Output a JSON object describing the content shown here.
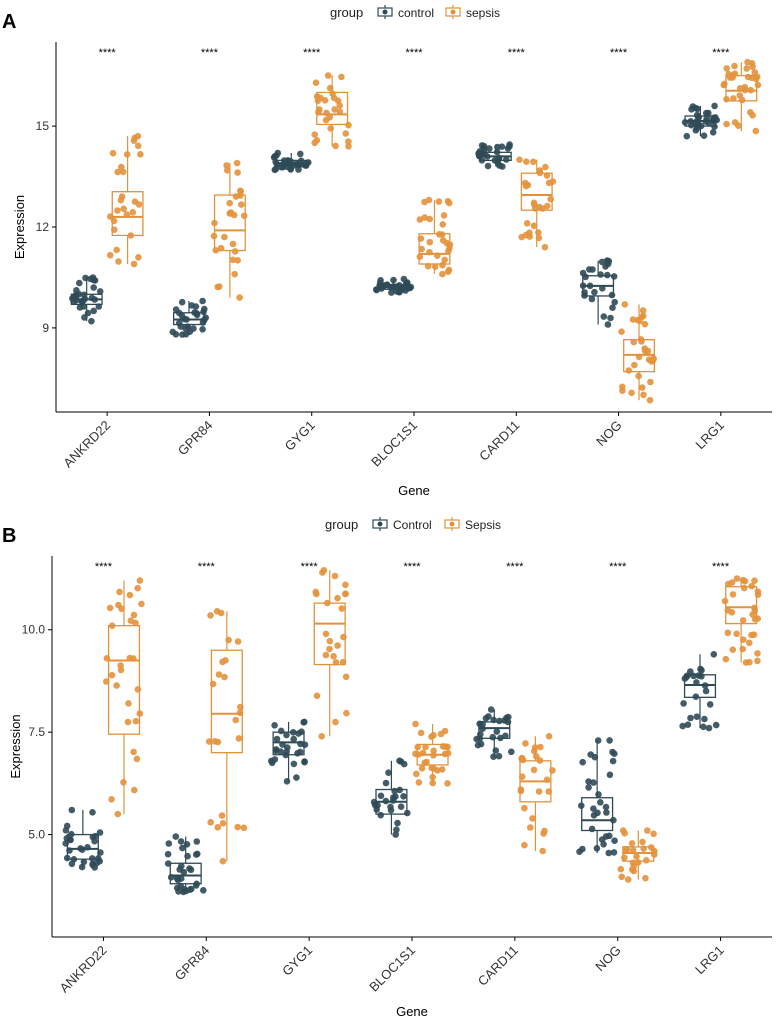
{
  "chart_data": [
    {
      "panel_label": "A",
      "type": "boxplot",
      "legend": {
        "title": "group",
        "entries": [
          "control",
          "sepsis"
        ],
        "placement": "top"
      },
      "colors": {
        "control": "#2f4a57",
        "sepsis": "#e3923c"
      },
      "xlabel": "Gene",
      "ylabel": "Expression",
      "ylim": [
        6.5,
        17.5
      ],
      "yticks": [
        9,
        12,
        15
      ],
      "ytick_labels": [
        "9",
        "12",
        "15"
      ],
      "categories": [
        "ANKRD22",
        "GPR84",
        "GYG1",
        "BLOC1S1",
        "CARD11",
        "NOG",
        "LRG1"
      ],
      "significance": [
        "****",
        "****",
        "****",
        "****",
        "****",
        "****",
        "****"
      ],
      "series": [
        {
          "name": "control",
          "boxes": [
            {
              "min": 9.2,
              "q1": 9.7,
              "median": 9.85,
              "q3": 10.0,
              "max": 10.5
            },
            {
              "min": 8.8,
              "q1": 9.1,
              "median": 9.25,
              "q3": 9.45,
              "max": 9.8
            },
            {
              "min": 13.7,
              "q1": 13.82,
              "median": 13.9,
              "q3": 13.98,
              "max": 14.2
            },
            {
              "min": 10.05,
              "q1": 10.15,
              "median": 10.22,
              "q3": 10.28,
              "max": 10.45
            },
            {
              "min": 13.8,
              "q1": 13.98,
              "median": 14.1,
              "q3": 14.22,
              "max": 14.45
            },
            {
              "min": 9.1,
              "q1": 9.95,
              "median": 10.25,
              "q3": 10.55,
              "max": 11.0
            },
            {
              "min": 14.7,
              "q1": 15.0,
              "median": 15.15,
              "q3": 15.3,
              "max": 15.6
            }
          ]
        },
        {
          "name": "sepsis",
          "boxes": [
            {
              "min": 10.9,
              "q1": 11.75,
              "median": 12.3,
              "q3": 13.05,
              "max": 14.7
            },
            {
              "min": 9.9,
              "q1": 11.3,
              "median": 11.9,
              "q3": 12.95,
              "max": 13.9
            },
            {
              "min": 14.4,
              "q1": 15.05,
              "median": 15.35,
              "q3": 16.0,
              "max": 16.5
            },
            {
              "min": 10.6,
              "q1": 10.9,
              "median": 11.2,
              "q3": 11.8,
              "max": 12.8
            },
            {
              "min": 11.4,
              "q1": 12.5,
              "median": 12.95,
              "q3": 13.6,
              "max": 14.0
            },
            {
              "min": 6.85,
              "q1": 7.7,
              "median": 8.2,
              "q3": 8.65,
              "max": 9.7
            },
            {
              "min": 14.85,
              "q1": 15.75,
              "median": 16.05,
              "q3": 16.5,
              "max": 16.9
            }
          ]
        }
      ]
    },
    {
      "panel_label": "B",
      "type": "boxplot",
      "legend": {
        "title": "group",
        "entries": [
          "Control",
          "Sepsis"
        ],
        "placement": "top"
      },
      "colors": {
        "control": "#2f4a57",
        "sepsis": "#e3923c"
      },
      "xlabel": "Gene",
      "ylabel": "Expression",
      "ylim": [
        2.5,
        11.8
      ],
      "yticks": [
        5.0,
        7.5,
        10.0
      ],
      "ytick_labels": [
        "5.0",
        "7.5",
        "10.0"
      ],
      "categories": [
        "ANKRD22",
        "GPR84",
        "GYG1",
        "BLOC1S1",
        "CARD11",
        "NOG",
        "LRG1"
      ],
      "significance": [
        "****",
        "****",
        "****",
        "****",
        "****",
        "****",
        "****"
      ],
      "series": [
        {
          "name": "Control",
          "boxes": [
            {
              "min": 4.2,
              "q1": 4.4,
              "median": 4.65,
              "q3": 5.0,
              "max": 5.6
            },
            {
              "min": 3.6,
              "q1": 3.8,
              "median": 4.0,
              "q3": 4.3,
              "max": 4.95
            },
            {
              "min": 6.3,
              "q1": 6.95,
              "median": 7.25,
              "q3": 7.5,
              "max": 7.75
            },
            {
              "min": 5.0,
              "q1": 5.5,
              "median": 5.8,
              "q3": 6.1,
              "max": 6.8
            },
            {
              "min": 6.9,
              "q1": 7.35,
              "median": 7.6,
              "q3": 7.75,
              "max": 8.05
            },
            {
              "min": 4.55,
              "q1": 5.1,
              "median": 5.35,
              "q3": 5.9,
              "max": 7.3
            },
            {
              "min": 7.6,
              "q1": 8.35,
              "median": 8.65,
              "q3": 8.9,
              "max": 9.4
            }
          ]
        },
        {
          "name": "Sepsis",
          "boxes": [
            {
              "min": 5.5,
              "q1": 7.45,
              "median": 9.25,
              "q3": 10.1,
              "max": 11.2
            },
            {
              "min": 4.35,
              "q1": 7.0,
              "median": 7.95,
              "q3": 9.5,
              "max": 10.45
            },
            {
              "min": 7.4,
              "q1": 9.15,
              "median": 10.15,
              "q3": 10.65,
              "max": 11.45
            },
            {
              "min": 6.25,
              "q1": 6.7,
              "median": 6.95,
              "q3": 7.2,
              "max": 7.7
            },
            {
              "min": 4.6,
              "q1": 5.8,
              "median": 6.3,
              "q3": 6.8,
              "max": 7.4
            },
            {
              "min": 3.9,
              "q1": 4.35,
              "median": 4.55,
              "q3": 4.7,
              "max": 5.1
            },
            {
              "min": 9.2,
              "q1": 10.15,
              "median": 10.55,
              "q3": 11.05,
              "max": 11.25
            }
          ]
        }
      ]
    }
  ]
}
